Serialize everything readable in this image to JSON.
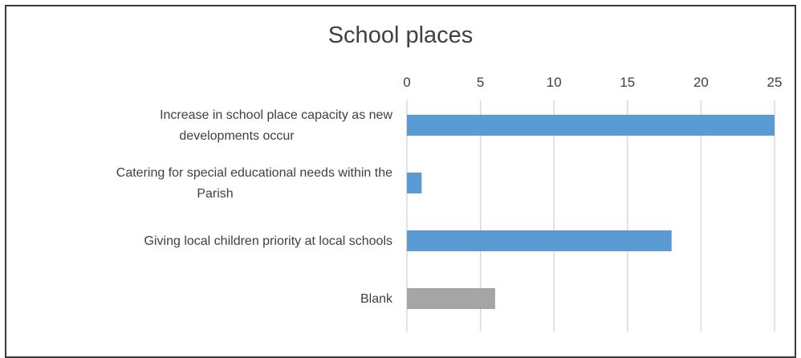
{
  "chart_data": {
    "type": "bar",
    "orientation": "horizontal",
    "title": "School places",
    "xlim": [
      0,
      25
    ],
    "ticks": [
      0,
      5,
      10,
      15,
      20,
      25
    ],
    "grid": true,
    "categories": [
      [
        "Increase in school place capacity as new",
        "developments occur"
      ],
      [
        "Catering for special educational needs within the",
        "Parish"
      ],
      [
        "Giving local children priority at local schools"
      ],
      [
        "Blank"
      ]
    ],
    "values": [
      25,
      1,
      18,
      6
    ],
    "colors": [
      "#5b9bd5",
      "#5b9bd5",
      "#5b9bd5",
      "#a5a5a5"
    ]
  }
}
